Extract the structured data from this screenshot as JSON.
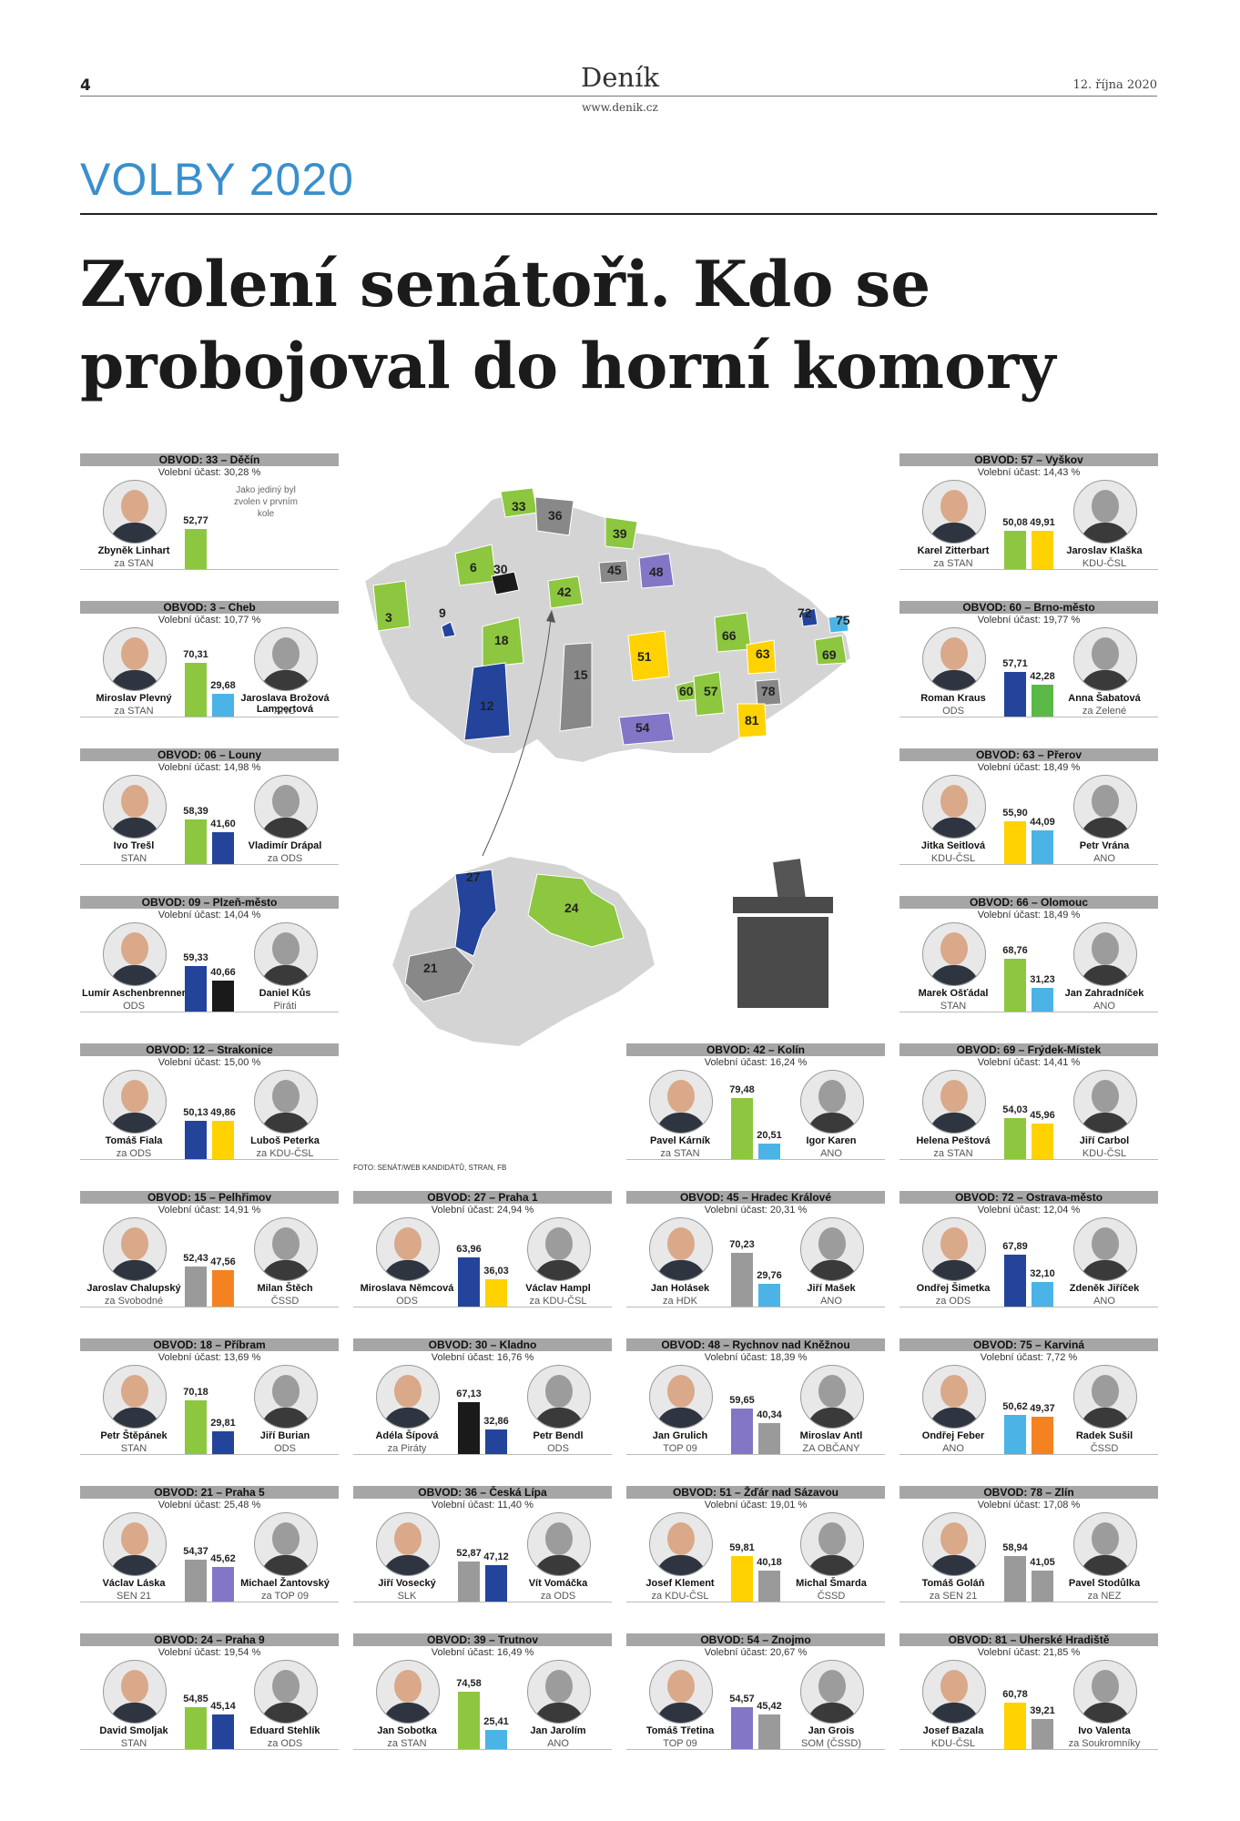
{
  "header": {
    "page_number": "4",
    "brand": "Deník",
    "url": "www.denik.cz",
    "date": "12. října 2020"
  },
  "section": "VOLBY 2020",
  "headline": {
    "line1": "Zvolení senátoři. Kdo se",
    "line2": "probojoval do horní komory"
  },
  "photo_credit": "FOTO: SENÁT/WEB KANDIDÁTŮ, STRAN, FB",
  "colors": {
    "STAN": "#8dc63f",
    "ODS": "#23449a",
    "ANO": "#4bb3e6",
    "KDU": "#ffd200",
    "CSSD": "#f58220",
    "Pirati": "#1a1a1a",
    "Gray": "#888888",
    "Purple": "#8476c6",
    "Zelene": "#5bb947"
  },
  "map": {
    "labels": [
      "33",
      "36",
      "39",
      "30",
      "6",
      "45",
      "48",
      "42",
      "9",
      "3",
      "18",
      "15",
      "72",
      "75",
      "69",
      "66",
      "63",
      "51",
      "60",
      "57",
      "78",
      "12",
      "54",
      "81"
    ],
    "detail_labels": [
      "27",
      "24",
      "21"
    ]
  },
  "districts": [
    {
      "header": "OBVOD: 33 – Děčín",
      "turnout": "Volební účast: 30,28 %",
      "note": "Jako jediný byl zvolen v prvním kole",
      "a": {
        "name": "Zbyněk Linhart",
        "party": "za STAN",
        "value": "52,77",
        "pct": 52.77,
        "color": "#8dc63f"
      }
    },
    {
      "header": "OBVOD: 3 – Cheb",
      "turnout": "Volební účast: 10,77 %",
      "a": {
        "name": "Miroslav Plevný",
        "party": "za STAN",
        "value": "70,31",
        "pct": 70.31,
        "color": "#8dc63f"
      },
      "b": {
        "name": "Jaroslava Brožová Lampertová",
        "party": "ANO",
        "value": "29,68",
        "pct": 29.68,
        "color": "#4bb3e6"
      }
    },
    {
      "header": "OBVOD: 06 – Louny",
      "turnout": "Volební účast: 14,98 %",
      "a": {
        "name": "Ivo Trešl",
        "party": "STAN",
        "value": "58,39",
        "pct": 58.39,
        "color": "#8dc63f"
      },
      "b": {
        "name": "Vladimír Drápal",
        "party": "za ODS",
        "value": "41,60",
        "pct": 41.6,
        "color": "#23449a"
      }
    },
    {
      "header": "OBVOD: 09 – Plzeň-město",
      "turnout": "Volební účast: 14,04 %",
      "a": {
        "name": "Lumír Aschenbrenner",
        "party": "ODS",
        "value": "59,33",
        "pct": 59.33,
        "color": "#23449a"
      },
      "b": {
        "name": "Daniel Kůs",
        "party": "Piráti",
        "value": "40,66",
        "pct": 40.66,
        "color": "#1a1a1a"
      }
    },
    {
      "header": "OBVOD: 12 – Strakonice",
      "turnout": "Volební účast: 15,00 %",
      "a": {
        "name": "Tomáš Fiala",
        "party": "za ODS",
        "value": "50,13",
        "pct": 50.13,
        "color": "#23449a"
      },
      "b": {
        "name": "Luboš Peterka",
        "party": "za KDU-ČSL",
        "value": "49,86",
        "pct": 49.86,
        "color": "#ffd200"
      }
    },
    {
      "header": "OBVOD: 15 – Pelhřimov",
      "turnout": "Volební účast: 14,91 %",
      "a": {
        "name": "Jaroslav Chalupský",
        "party": "za Svobodné",
        "value": "52,43",
        "pct": 52.43,
        "color": "#9a9a9a"
      },
      "b": {
        "name": "Milan Štěch",
        "party": "ČSSD",
        "value": "47,56",
        "pct": 47.56,
        "color": "#f58220"
      }
    },
    {
      "header": "OBVOD: 18 – Příbram",
      "turnout": "Volební účast: 13,69 %",
      "a": {
        "name": "Petr Štěpánek",
        "party": "STAN",
        "value": "70,18",
        "pct": 70.18,
        "color": "#8dc63f"
      },
      "b": {
        "name": "Jiří Burian",
        "party": "ODS",
        "value": "29,81",
        "pct": 29.81,
        "color": "#23449a"
      }
    },
    {
      "header": "OBVOD: 21 – Praha 5",
      "turnout": "Volební účast: 25,48 %",
      "a": {
        "name": "Václav Láska",
        "party": "SEN 21",
        "value": "54,37",
        "pct": 54.37,
        "color": "#9a9a9a"
      },
      "b": {
        "name": "Michael Žantovský",
        "party": "za TOP 09",
        "value": "45,62",
        "pct": 45.62,
        "color": "#8476c6"
      }
    },
    {
      "header": "OBVOD: 24 – Praha 9",
      "turnout": "Volební účast: 19,54 %",
      "a": {
        "name": "David Smoljak",
        "party": "STAN",
        "value": "54,85",
        "pct": 54.85,
        "color": "#8dc63f"
      },
      "b": {
        "name": "Eduard Stehlík",
        "party": "za ODS",
        "value": "45,14",
        "pct": 45.14,
        "color": "#23449a"
      }
    },
    {
      "header": "OBVOD: 57 – Vyškov",
      "turnout": "Volební účast: 14,43 %",
      "a": {
        "name": "Karel Zitterbart",
        "party": "za STAN",
        "value": "50,08",
        "pct": 50.08,
        "color": "#8dc63f"
      },
      "b": {
        "name": "Jaroslav Klaška",
        "party": "KDU-ČSL",
        "value": "49,91",
        "pct": 49.91,
        "color": "#ffd200"
      }
    },
    {
      "header": "OBVOD: 60 – Brno-město",
      "turnout": "Volební účast: 19,77 %",
      "a": {
        "name": "Roman Kraus",
        "party": "ODS",
        "value": "57,71",
        "pct": 57.71,
        "color": "#23449a"
      },
      "b": {
        "name": "Anna Šabatová",
        "party": "za Zelené",
        "value": "42,28",
        "pct": 42.28,
        "color": "#5bb947"
      }
    },
    {
      "header": "OBVOD: 63 – Přerov",
      "turnout": "Volební účast: 18,49 %",
      "a": {
        "name": "Jitka Seitlová",
        "party": "KDU-ČSL",
        "value": "55,90",
        "pct": 55.9,
        "color": "#ffd200"
      },
      "b": {
        "name": "Petr Vrána",
        "party": "ANO",
        "value": "44,09",
        "pct": 44.09,
        "color": "#4bb3e6"
      }
    },
    {
      "header": "OBVOD: 66 – Olomouc",
      "turnout": "Volební účast: 18,49 %",
      "a": {
        "name": "Marek Ošťádal",
        "party": "STAN",
        "value": "68,76",
        "pct": 68.76,
        "color": "#8dc63f"
      },
      "b": {
        "name": "Jan Zahradníček",
        "party": "ANO",
        "value": "31,23",
        "pct": 31.23,
        "color": "#4bb3e6"
      }
    },
    {
      "header": "OBVOD: 69 – Frýdek-Místek",
      "turnout": "Volební účast: 14,41 %",
      "a": {
        "name": "Helena Peštová",
        "party": "za STAN",
        "value": "54,03",
        "pct": 54.03,
        "color": "#8dc63f"
      },
      "b": {
        "name": "Jiří Carbol",
        "party": "KDU-ČSL",
        "value": "45,96",
        "pct": 45.96,
        "color": "#ffd200"
      }
    },
    {
      "header": "OBVOD: 72 – Ostrava-město",
      "turnout": "Volební účast: 12,04 %",
      "a": {
        "name": "Ondřej Šimetka",
        "party": "za ODS",
        "value": "67,89",
        "pct": 67.89,
        "color": "#23449a"
      },
      "b": {
        "name": "Zdeněk Jiříček",
        "party": "ANO",
        "value": "32,10",
        "pct": 32.1,
        "color": "#4bb3e6"
      }
    },
    {
      "header": "OBVOD: 75 – Karviná",
      "turnout": "Volební účast: 7,72 %",
      "a": {
        "name": "Ondřej Feber",
        "party": "ANO",
        "value": "50,62",
        "pct": 50.62,
        "color": "#4bb3e6"
      },
      "b": {
        "name": "Radek Sušil",
        "party": "ČSSD",
        "value": "49,37",
        "pct": 49.37,
        "color": "#f58220"
      }
    },
    {
      "header": "OBVOD: 78 – Zlín",
      "turnout": "Volební účast: 17,08 %",
      "a": {
        "name": "Tomáš Goláň",
        "party": "za SEN 21",
        "value": "58,94",
        "pct": 58.94,
        "color": "#9a9a9a"
      },
      "b": {
        "name": "Pavel Stodůlka",
        "party": "za NEZ",
        "value": "41,05",
        "pct": 41.05,
        "color": "#9a9a9a"
      }
    },
    {
      "header": "OBVOD: 81 – Uherské Hradiště",
      "turnout": "Volební účast: 21,85 %",
      "a": {
        "name": "Josef Bazala",
        "party": "KDU-ČSL",
        "value": "60,78",
        "pct": 60.78,
        "color": "#ffd200"
      },
      "b": {
        "name": "Ivo Valenta",
        "party": "za Soukromníky",
        "value": "39,21",
        "pct": 39.21,
        "color": "#9a9a9a"
      }
    },
    {
      "header": "OBVOD: 42 – Kolín",
      "turnout": "Volební účast: 16,24 %",
      "a": {
        "name": "Pavel Kárník",
        "party": "za STAN",
        "value": "79,48",
        "pct": 79.48,
        "color": "#8dc63f"
      },
      "b": {
        "name": "Igor Karen",
        "party": "ANO",
        "value": "20,51",
        "pct": 20.51,
        "color": "#4bb3e6"
      }
    },
    {
      "header": "OBVOD: 27 – Praha 1",
      "turnout": "Volební účast: 24,94 %",
      "a": {
        "name": "Miroslava Němcová",
        "party": "ODS",
        "value": "63,96",
        "pct": 63.96,
        "color": "#23449a"
      },
      "b": {
        "name": "Václav Hampl",
        "party": "za KDU-ČSL",
        "value": "36,03",
        "pct": 36.03,
        "color": "#ffd200"
      }
    },
    {
      "header": "OBVOD: 45 – Hradec Králové",
      "turnout": "Volební účast: 20,31 %",
      "a": {
        "name": "Jan Holásek",
        "party": "za HDK",
        "value": "70,23",
        "pct": 70.23,
        "color": "#9a9a9a"
      },
      "b": {
        "name": "Jiří Mašek",
        "party": "ANO",
        "value": "29,76",
        "pct": 29.76,
        "color": "#4bb3e6"
      }
    },
    {
      "header": "OBVOD: 30 – Kladno",
      "turnout": "Volební účast: 16,76 %",
      "a": {
        "name": "Adéla Šípová",
        "party": "za Piráty",
        "value": "67,13",
        "pct": 67.13,
        "color": "#1a1a1a"
      },
      "b": {
        "name": "Petr Bendl",
        "party": "ODS",
        "value": "32,86",
        "pct": 32.86,
        "color": "#23449a"
      }
    },
    {
      "header": "OBVOD: 48 – Rychnov nad Kněžnou",
      "turnout": "Volební účast: 18,39 %",
      "a": {
        "name": "Jan Grulich",
        "party": "TOP 09",
        "value": "59,65",
        "pct": 59.65,
        "color": "#8476c6"
      },
      "b": {
        "name": "Miroslav Antl",
        "party": "ZA OBČANY",
        "value": "40,34",
        "pct": 40.34,
        "color": "#9a9a9a"
      }
    },
    {
      "header": "OBVOD: 36 – Česká Lípa",
      "turnout": "Volební účast: 11,40 %",
      "a": {
        "name": "Jiří Vosecký",
        "party": "SLK",
        "value": "52,87",
        "pct": 52.87,
        "color": "#9a9a9a"
      },
      "b": {
        "name": "Vít Vomáčka",
        "party": "za ODS",
        "value": "47,12",
        "pct": 47.12,
        "color": "#23449a"
      }
    },
    {
      "header": "OBVOD: 51 – Žďár nad Sázavou",
      "turnout": "Volební účast: 19,01 %",
      "a": {
        "name": "Josef Klement",
        "party": "za KDU-ČSL",
        "value": "59,81",
        "pct": 59.81,
        "color": "#ffd200"
      },
      "b": {
        "name": "Michal Šmarda",
        "party": "ČSSD",
        "value": "40,18",
        "pct": 40.18,
        "color": "#9a9a9a"
      }
    },
    {
      "header": "OBVOD: 39 – Trutnov",
      "turnout": "Volební účast: 16,49 %",
      "a": {
        "name": "Jan Sobotka",
        "party": "za STAN",
        "value": "74,58",
        "pct": 74.58,
        "color": "#8dc63f"
      },
      "b": {
        "name": "Jan Jarolím",
        "party": "ANO",
        "value": "25,41",
        "pct": 25.41,
        "color": "#4bb3e6"
      }
    },
    {
      "header": "OBVOD: 54 – Znojmo",
      "turnout": "Volební účast: 20,67 %",
      "a": {
        "name": "Tomáš Třetina",
        "party": "TOP 09",
        "value": "54,57",
        "pct": 54.57,
        "color": "#8476c6"
      },
      "b": {
        "name": "Jan Grois",
        "party": "SOM (ČSSD)",
        "value": "45,42",
        "pct": 45.42,
        "color": "#9a9a9a"
      }
    }
  ]
}
